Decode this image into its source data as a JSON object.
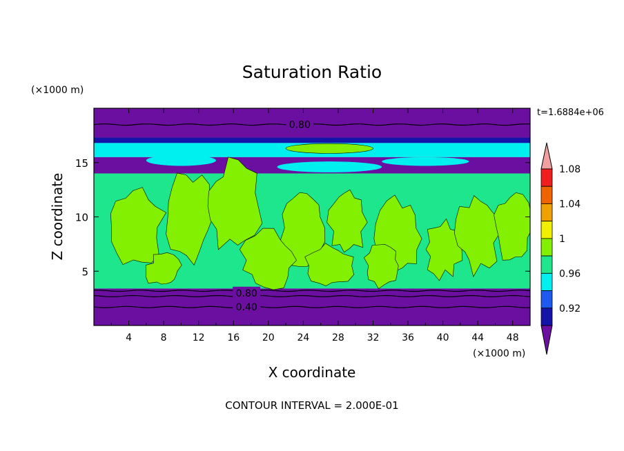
{
  "chart_data": {
    "type": "heatmap",
    "title": "Saturation Ratio",
    "xlabel": "X coordinate",
    "ylabel": "Z coordinate",
    "x_unit": "(×1000 m)",
    "y_unit": "(×1000 m)",
    "time_label": "t=1.6884e+06",
    "footer": "CONTOUR INTERVAL = 2.000E-01",
    "xlim": [
      0,
      50
    ],
    "ylim": [
      0,
      20
    ],
    "x_ticks": [
      "4",
      "8",
      "12",
      "16",
      "20",
      "24",
      "28",
      "32",
      "36",
      "40",
      "44",
      "48"
    ],
    "y_ticks": [
      "5",
      "10",
      "15"
    ],
    "colorbar_labels": [
      "0.92",
      "0.96",
      "1",
      "1.04",
      "1.08"
    ],
    "colorbar_colors": [
      "#6a0fa0",
      "#1414a8",
      "#1e5af0",
      "#00f0f0",
      "#1ee68c",
      "#82f000",
      "#f0f000",
      "#f0a000",
      "#f06400",
      "#f01e1e",
      "#f0a0a0"
    ],
    "contour_labels": [
      {
        "text": "0.80",
        "x": 23.6,
        "z": 18.5
      },
      {
        "text": "0.80",
        "x": 17.5,
        "z": 3.0
      },
      {
        "text": "0.40",
        "x": 17.5,
        "z": 1.7
      }
    ],
    "layers": [
      {
        "name": "top purple",
        "zmin": 17.3,
        "zmax": 20,
        "color": "#6a0fa0"
      },
      {
        "name": "upper dark blue",
        "zmin": 16.8,
        "zmax": 17.3,
        "color": "#1414a8"
      },
      {
        "name": "upper cyan",
        "zmin": 15.5,
        "zmax": 16.8,
        "color": "#00f0f0"
      },
      {
        "name": "purple band",
        "zmin": 14.0,
        "zmax": 15.5,
        "color": "#6a0fa0"
      },
      {
        "name": "mid green",
        "zmin": 3.4,
        "zmax": 14.0,
        "color": "#1ee68c"
      },
      {
        "name": "lower purple",
        "zmin": 0,
        "zmax": 3.4,
        "color": "#6a0fa0"
      }
    ]
  }
}
